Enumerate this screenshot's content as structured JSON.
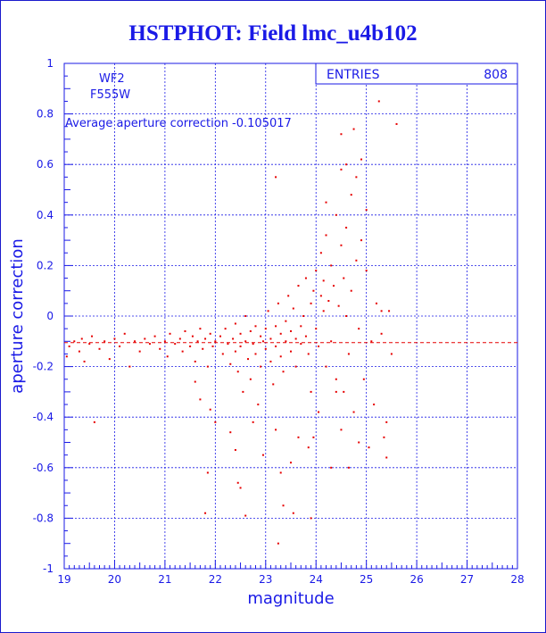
{
  "title": "HSTPHOT: Field lmc_u4b102",
  "stats": {
    "entries_label": "ENTRIES",
    "entries_value": "808"
  },
  "labels": {
    "chip": "WF2",
    "filter": "F555W",
    "average": "Average aperture correction -0.105017"
  },
  "colors": {
    "axis": "#1a1ae6",
    "grid": "#1a1ae6",
    "points": "#e60000"
  },
  "chart_data": {
    "type": "scatter",
    "xlabel": "magnitude",
    "ylabel": "aperture correction",
    "xlim": [
      19,
      28
    ],
    "ylim": [
      -1,
      1
    ],
    "xticks": [
      19,
      20,
      21,
      22,
      23,
      24,
      25,
      26,
      27,
      28
    ],
    "yticks": [
      -1,
      -0.8,
      -0.6,
      -0.4,
      -0.2,
      0,
      0.2,
      0.4,
      0.6,
      0.8,
      1
    ],
    "grid": true,
    "reference_line": {
      "y": -0.105017,
      "style": "dashed"
    },
    "points": [
      [
        19.05,
        -0.16
      ],
      [
        19.1,
        -0.12
      ],
      [
        19.2,
        -0.1
      ],
      [
        19.3,
        -0.14
      ],
      [
        19.35,
        -0.09
      ],
      [
        19.4,
        -0.18
      ],
      [
        19.5,
        -0.11
      ],
      [
        19.55,
        -0.08
      ],
      [
        19.6,
        -0.42
      ],
      [
        19.7,
        -0.13
      ],
      [
        19.8,
        -0.1
      ],
      [
        19.9,
        -0.17
      ],
      [
        20.0,
        -0.09
      ],
      [
        20.1,
        -0.12
      ],
      [
        20.2,
        -0.07
      ],
      [
        20.3,
        -0.2
      ],
      [
        20.4,
        -0.1
      ],
      [
        20.5,
        -0.14
      ],
      [
        20.6,
        -0.09
      ],
      [
        20.7,
        -0.11
      ],
      [
        20.8,
        -0.08
      ],
      [
        20.9,
        -0.13
      ],
      [
        21.0,
        -0.1
      ],
      [
        21.05,
        -0.16
      ],
      [
        21.1,
        -0.07
      ],
      [
        21.2,
        -0.11
      ],
      [
        21.3,
        -0.09
      ],
      [
        21.35,
        -0.14
      ],
      [
        21.4,
        -0.06
      ],
      [
        21.5,
        -0.12
      ],
      [
        21.55,
        -0.08
      ],
      [
        21.6,
        -0.18
      ],
      [
        21.65,
        -0.1
      ],
      [
        21.7,
        -0.05
      ],
      [
        21.75,
        -0.13
      ],
      [
        21.8,
        -0.09
      ],
      [
        21.85,
        -0.2
      ],
      [
        21.9,
        -0.07
      ],
      [
        21.95,
        -0.12
      ],
      [
        22.0,
        -0.1
      ],
      [
        21.6,
        -0.26
      ],
      [
        21.7,
        -0.33
      ],
      [
        21.9,
        -0.37
      ],
      [
        22.0,
        -0.42
      ],
      [
        21.8,
        -0.78
      ],
      [
        21.85,
        -0.62
      ],
      [
        22.1,
        -0.08
      ],
      [
        22.15,
        -0.15
      ],
      [
        22.2,
        -0.05
      ],
      [
        22.25,
        -0.11
      ],
      [
        22.3,
        -0.19
      ],
      [
        22.35,
        -0.09
      ],
      [
        22.4,
        -0.03
      ],
      [
        22.4,
        -0.14
      ],
      [
        22.45,
        -0.22
      ],
      [
        22.5,
        -0.07
      ],
      [
        22.5,
        -0.12
      ],
      [
        22.55,
        -0.3
      ],
      [
        22.6,
        -0.1
      ],
      [
        22.6,
        0.0
      ],
      [
        22.65,
        -0.17
      ],
      [
        22.7,
        -0.06
      ],
      [
        22.7,
        -0.25
      ],
      [
        22.75,
        -0.11
      ],
      [
        22.8,
        -0.04
      ],
      [
        22.8,
        -0.15
      ],
      [
        22.85,
        -0.35
      ],
      [
        22.9,
        -0.08
      ],
      [
        22.9,
        -0.2
      ],
      [
        22.95,
        -0.1
      ],
      [
        22.3,
        -0.46
      ],
      [
        22.4,
        -0.53
      ],
      [
        22.5,
        -0.68
      ],
      [
        22.6,
        -0.79
      ],
      [
        22.45,
        -0.66
      ],
      [
        22.75,
        -0.42
      ],
      [
        22.95,
        -0.55
      ],
      [
        23.0,
        -0.05
      ],
      [
        23.0,
        -0.13
      ],
      [
        23.05,
        0.02
      ],
      [
        23.1,
        -0.09
      ],
      [
        23.1,
        -0.18
      ],
      [
        23.15,
        -0.27
      ],
      [
        23.2,
        -0.04
      ],
      [
        23.2,
        -0.12
      ],
      [
        23.25,
        0.05
      ],
      [
        23.3,
        -0.07
      ],
      [
        23.3,
        -0.16
      ],
      [
        23.35,
        -0.22
      ],
      [
        23.4,
        -0.02
      ],
      [
        23.4,
        -0.1
      ],
      [
        23.45,
        0.08
      ],
      [
        23.5,
        -0.06
      ],
      [
        23.5,
        -0.14
      ],
      [
        23.55,
        0.03
      ],
      [
        23.6,
        -0.09
      ],
      [
        23.6,
        -0.2
      ],
      [
        23.65,
        0.12
      ],
      [
        23.7,
        -0.04
      ],
      [
        23.7,
        -0.11
      ],
      [
        23.2,
        -0.45
      ],
      [
        23.3,
        -0.62
      ],
      [
        23.35,
        -0.75
      ],
      [
        23.25,
        -0.9
      ],
      [
        23.5,
        -0.58
      ],
      [
        23.55,
        -0.78
      ],
      [
        23.65,
        -0.48
      ],
      [
        23.75,
        0.0
      ],
      [
        23.8,
        -0.08
      ],
      [
        23.8,
        0.15
      ],
      [
        23.85,
        -0.15
      ],
      [
        23.9,
        0.05
      ],
      [
        23.9,
        -0.3
      ],
      [
        23.95,
        0.1
      ],
      [
        24.0,
        -0.05
      ],
      [
        24.0,
        0.18
      ],
      [
        24.05,
        -0.12
      ],
      [
        24.1,
        0.08
      ],
      [
        24.1,
        0.25
      ],
      [
        24.15,
        0.02
      ],
      [
        23.2,
        0.55
      ],
      [
        23.85,
        -0.52
      ],
      [
        23.9,
        -0.8
      ],
      [
        24.15,
        0.14
      ],
      [
        24.2,
        0.32
      ],
      [
        24.2,
        -0.2
      ],
      [
        24.25,
        0.06
      ],
      [
        24.3,
        0.2
      ],
      [
        24.3,
        -0.1
      ],
      [
        24.35,
        0.12
      ],
      [
        24.4,
        0.4
      ],
      [
        24.4,
        -0.3
      ],
      [
        24.45,
        0.04
      ],
      [
        24.5,
        0.28
      ],
      [
        24.5,
        -0.45
      ],
      [
        24.55,
        0.15
      ],
      [
        24.6,
        0.0
      ],
      [
        24.6,
        0.35
      ],
      [
        24.65,
        -0.15
      ],
      [
        24.7,
        0.48
      ],
      [
        24.7,
        0.1
      ],
      [
        24.75,
        -0.38
      ],
      [
        24.8,
        0.55
      ],
      [
        24.8,
        0.22
      ],
      [
        24.85,
        -0.05
      ],
      [
        24.9,
        0.3
      ],
      [
        24.9,
        0.62
      ],
      [
        24.95,
        -0.25
      ],
      [
        25.0,
        0.18
      ],
      [
        25.0,
        0.42
      ],
      [
        24.5,
        0.58
      ],
      [
        24.6,
        0.6
      ],
      [
        24.75,
        0.74
      ],
      [
        24.5,
        0.72
      ],
      [
        25.1,
        -0.1
      ],
      [
        25.15,
        -0.35
      ],
      [
        25.2,
        0.05
      ],
      [
        25.25,
        0.85
      ],
      [
        25.3,
        0.02
      ],
      [
        25.35,
        -0.48
      ],
      [
        25.4,
        -0.56
      ],
      [
        25.45,
        0.02
      ],
      [
        25.5,
        -0.15
      ],
      [
        25.6,
        0.76
      ],
      [
        25.3,
        -0.07
      ],
      [
        25.05,
        -0.52
      ],
      [
        24.85,
        -0.5
      ],
      [
        24.65,
        -0.6
      ],
      [
        24.55,
        -0.3
      ],
      [
        24.3,
        -0.6
      ],
      [
        24.2,
        0.45
      ],
      [
        24.05,
        -0.38
      ],
      [
        23.95,
        -0.48
      ],
      [
        24.4,
        -0.25
      ],
      [
        25.4,
        -0.42
      ]
    ]
  }
}
